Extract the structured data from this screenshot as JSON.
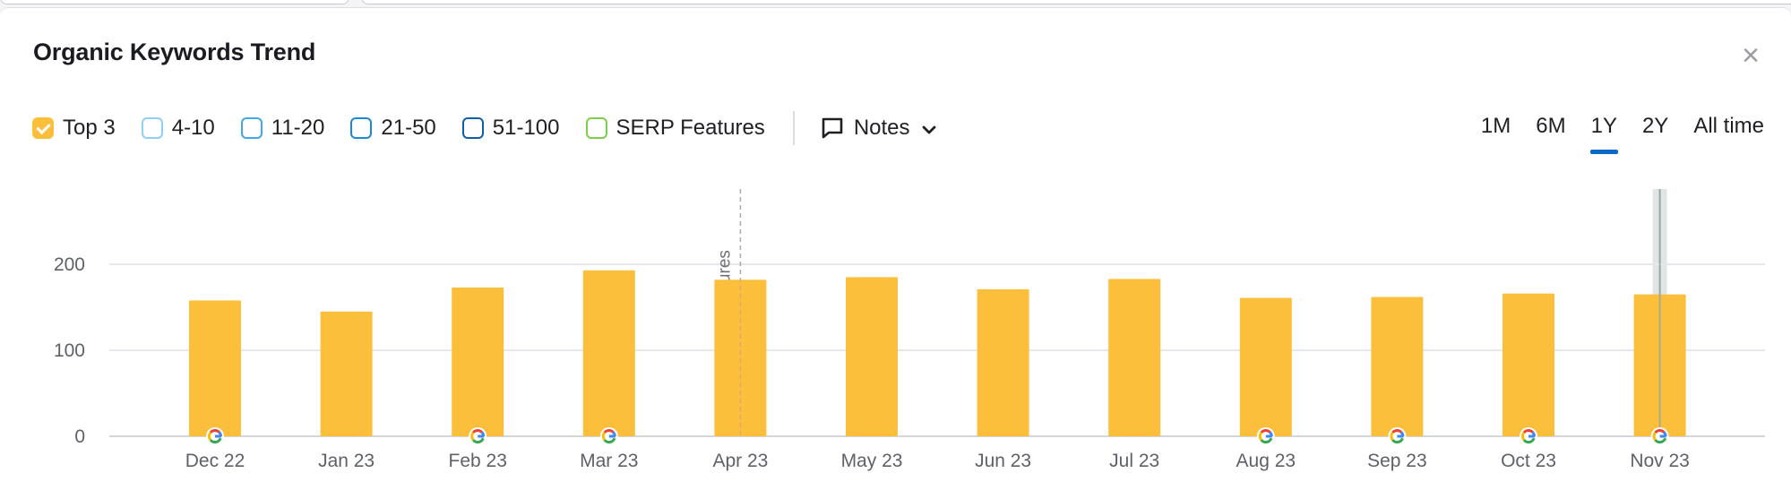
{
  "title": "Organic Keywords Trend",
  "close_label": "×",
  "filters": [
    {
      "label": "Top 3",
      "checked": true,
      "color": "#fcbf3c"
    },
    {
      "label": "4-10",
      "checked": false,
      "color": "#8fd0f5"
    },
    {
      "label": "11-20",
      "checked": false,
      "color": "#3fa9e6"
    },
    {
      "label": "21-50",
      "checked": false,
      "color": "#1f88d6"
    },
    {
      "label": "51-100",
      "checked": false,
      "color": "#0f5ea8"
    },
    {
      "label": "SERP Features",
      "checked": false,
      "color": "#7ccf4a"
    }
  ],
  "notes": {
    "label": "Notes"
  },
  "periods": [
    {
      "label": "1M",
      "active": false
    },
    {
      "label": "6M",
      "active": false
    },
    {
      "label": "1Y",
      "active": true
    },
    {
      "label": "2Y",
      "active": false
    },
    {
      "label": "All time",
      "active": false
    }
  ],
  "chart_data": {
    "type": "bar",
    "categories": [
      "Dec 22",
      "Jan 23",
      "Feb 23",
      "Mar 23",
      "Apr 23",
      "May 23",
      "Jun 23",
      "Jul 23",
      "Aug 23",
      "Sep 23",
      "Oct 23",
      "Nov 23"
    ],
    "series": [
      {
        "name": "Top 3",
        "color": "#fcbf3c",
        "values": [
          158,
          145,
          173,
          193,
          182,
          185,
          171,
          183,
          161,
          162,
          166,
          165
        ]
      }
    ],
    "yticks": [
      0,
      100,
      200
    ],
    "ylim": [
      0,
      290
    ],
    "grid": true,
    "google_update_markers": [
      "Dec 22",
      "Feb 23",
      "Mar 23",
      "Aug 23",
      "Sep 23",
      "Oct 23",
      "Nov 23"
    ],
    "annotations": [
      {
        "x": "Apr 23",
        "label": "SERP features"
      }
    ],
    "highlighted_category": "Nov 23"
  }
}
